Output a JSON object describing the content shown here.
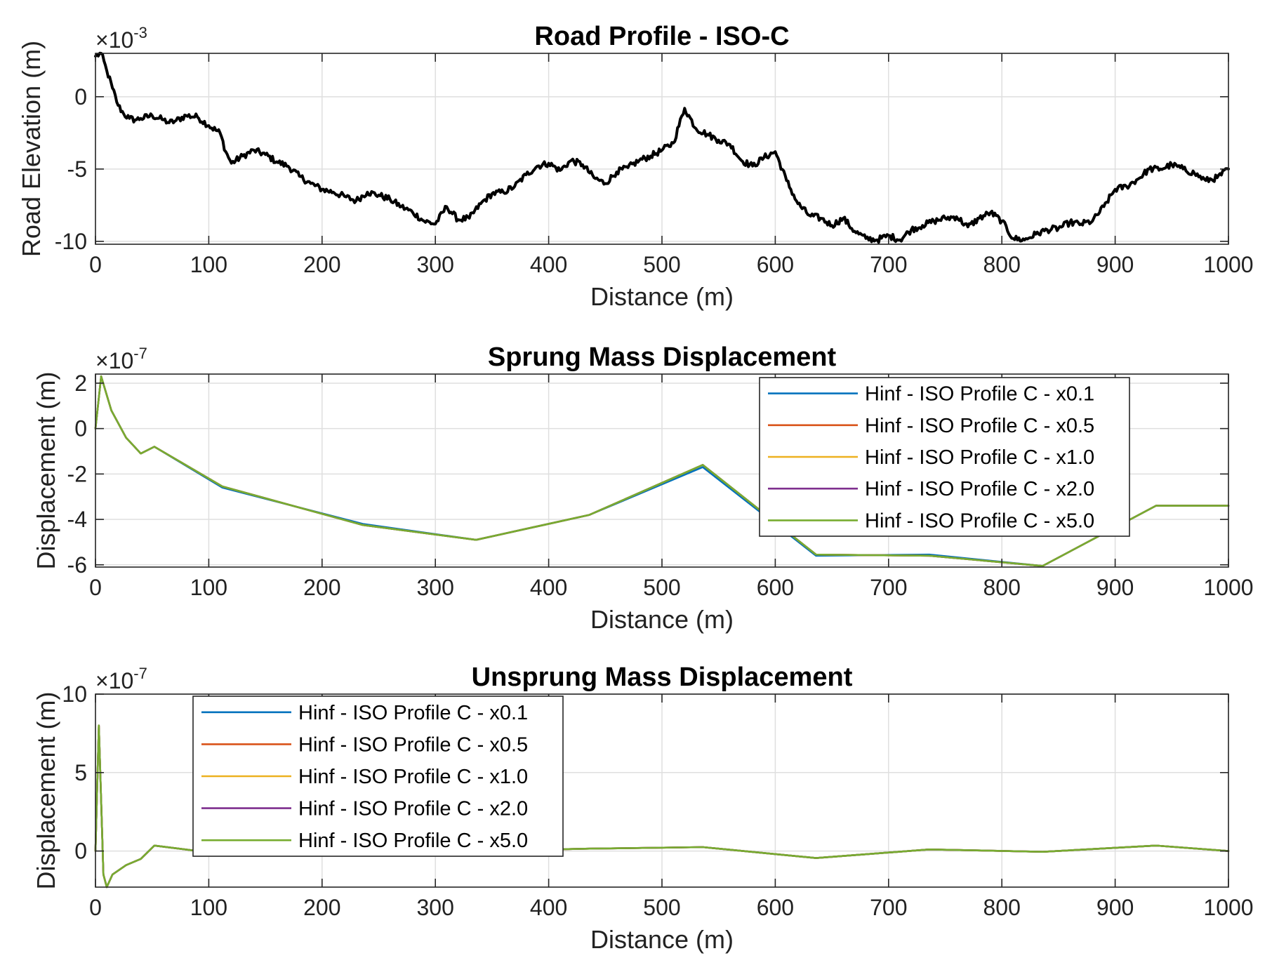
{
  "chart_data": [
    {
      "type": "line",
      "title": "Road Profile - ISO-C",
      "xlabel": "Distance (m)",
      "ylabel": "Road Elevation (m)",
      "y_exponent": "×10",
      "y_exponent_power": "-3",
      "xlim": [
        0,
        1000
      ],
      "ylim": [
        -10.2,
        3.0
      ],
      "xticks": [
        0,
        100,
        200,
        300,
        400,
        500,
        600,
        700,
        800,
        900,
        1000
      ],
      "yticks": [
        -10,
        -5,
        0
      ],
      "grid": true,
      "legend": null,
      "rough": true,
      "series": [
        {
          "color": "#000000",
          "x": [
            0,
            5,
            10,
            15,
            20,
            25,
            30,
            35,
            40,
            50,
            60,
            65,
            70,
            80,
            90,
            100,
            110,
            115,
            120,
            130,
            140,
            150,
            160,
            170,
            180,
            190,
            200,
            210,
            220,
            230,
            240,
            250,
            260,
            270,
            280,
            290,
            300,
            310,
            320,
            330,
            340,
            350,
            360,
            370,
            380,
            390,
            400,
            410,
            420,
            430,
            440,
            450,
            460,
            470,
            480,
            490,
            500,
            510,
            520,
            530,
            540,
            550,
            560,
            570,
            580,
            590,
            600,
            610,
            620,
            630,
            640,
            650,
            660,
            670,
            680,
            690,
            700,
            710,
            720,
            730,
            740,
            750,
            760,
            770,
            780,
            790,
            800,
            810,
            820,
            830,
            840,
            850,
            860,
            870,
            880,
            890,
            900,
            910,
            920,
            930,
            940,
            950,
            960,
            970,
            980,
            990,
            1000
          ],
          "y": [
            2.8,
            3.0,
            1.8,
            0.6,
            -0.6,
            -1.2,
            -1.5,
            -1.6,
            -1.5,
            -1.3,
            -1.6,
            -1.8,
            -1.7,
            -1.3,
            -1.4,
            -2.0,
            -2.5,
            -3.8,
            -4.6,
            -4.1,
            -3.7,
            -4.0,
            -4.5,
            -4.8,
            -5.5,
            -6.0,
            -6.4,
            -6.6,
            -6.9,
            -7.2,
            -6.6,
            -6.8,
            -7.1,
            -7.6,
            -8.0,
            -8.6,
            -8.8,
            -7.6,
            -8.5,
            -8.4,
            -7.4,
            -6.7,
            -6.6,
            -6.2,
            -5.4,
            -4.8,
            -4.6,
            -5.1,
            -4.4,
            -4.7,
            -5.6,
            -6.0,
            -5.2,
            -4.9,
            -4.4,
            -4.1,
            -3.7,
            -3.2,
            -0.8,
            -2.2,
            -2.6,
            -3.0,
            -3.3,
            -4.4,
            -4.8,
            -4.2,
            -3.8,
            -5.8,
            -7.4,
            -8.2,
            -8.4,
            -8.9,
            -8.4,
            -9.3,
            -9.8,
            -9.9,
            -9.6,
            -9.9,
            -9.2,
            -8.9,
            -8.6,
            -8.4,
            -8.3,
            -9.0,
            -8.4,
            -8.0,
            -8.6,
            -9.8,
            -9.9,
            -9.5,
            -9.2,
            -9.1,
            -8.7,
            -8.8,
            -8.6,
            -7.6,
            -6.4,
            -6.2,
            -5.7,
            -5.0,
            -5.0,
            -4.7,
            -5.0,
            -5.3,
            -5.8,
            -5.6,
            -5.0
          ]
        }
      ]
    },
    {
      "type": "line",
      "title": "Sprung Mass Displacement",
      "xlabel": "Distance (m)",
      "ylabel": "Displacement (m)",
      "y_exponent": "×10",
      "y_exponent_power": "-7",
      "xlim": [
        0,
        1000
      ],
      "ylim": [
        -6.1,
        2.4
      ],
      "xticks": [
        0,
        100,
        200,
        300,
        400,
        500,
        600,
        700,
        800,
        900,
        1000
      ],
      "yticks": [
        -6,
        -4,
        -2,
        0,
        2
      ],
      "grid": true,
      "legend": "top-right",
      "series": [
        {
          "name": "Hinf - ISO Profile C - x0.1",
          "color": "#0072BD",
          "x": [
            0,
            5,
            14,
            27,
            40,
            52,
            112,
            236,
            336,
            436,
            536,
            636,
            736,
            836,
            936,
            1000
          ],
          "y": [
            0,
            2.3,
            0.8,
            -0.4,
            -1.1,
            -0.8,
            -2.6,
            -4.2,
            -4.9,
            -3.8,
            -1.7,
            -5.6,
            -5.55,
            -6.05,
            -3.4,
            -3.4
          ]
        },
        {
          "name": "Hinf - ISO Profile C - x0.5",
          "color": "#D95319",
          "x": [
            0,
            5,
            14,
            27,
            40,
            52,
            112,
            236,
            336,
            436,
            536,
            636,
            736,
            836,
            936,
            1000
          ],
          "y": [
            0,
            2.3,
            0.8,
            -0.4,
            -1.1,
            -0.8,
            -2.55,
            -4.25,
            -4.9,
            -3.8,
            -1.6,
            -5.55,
            -5.6,
            -6.05,
            -3.4,
            -3.4
          ]
        },
        {
          "name": "Hinf - ISO Profile C - x1.0",
          "color": "#EDB120",
          "x": [
            0,
            5,
            14,
            27,
            40,
            52,
            112,
            236,
            336,
            436,
            536,
            636,
            736,
            836,
            936,
            1000
          ],
          "y": [
            0,
            2.3,
            0.8,
            -0.4,
            -1.1,
            -0.8,
            -2.55,
            -4.25,
            -4.9,
            -3.8,
            -1.6,
            -5.55,
            -5.6,
            -6.05,
            -3.4,
            -3.4
          ]
        },
        {
          "name": "Hinf - ISO Profile C - x2.0",
          "color": "#7E2F8E",
          "x": [
            0,
            5,
            14,
            27,
            40,
            52,
            112,
            236,
            336,
            436,
            536,
            636,
            736,
            836,
            936,
            1000
          ],
          "y": [
            0,
            2.3,
            0.8,
            -0.4,
            -1.1,
            -0.8,
            -2.55,
            -4.25,
            -4.9,
            -3.8,
            -1.6,
            -5.55,
            -5.6,
            -6.05,
            -3.4,
            -3.4
          ]
        },
        {
          "name": "Hinf - ISO Profile C - x5.0",
          "color": "#77AC30",
          "x": [
            0,
            5,
            14,
            27,
            40,
            52,
            112,
            236,
            336,
            436,
            536,
            636,
            736,
            836,
            936,
            1000
          ],
          "y": [
            0,
            2.3,
            0.8,
            -0.4,
            -1.1,
            -0.8,
            -2.55,
            -4.25,
            -4.9,
            -3.8,
            -1.6,
            -5.55,
            -5.6,
            -6.05,
            -3.4,
            -3.4
          ]
        }
      ]
    },
    {
      "type": "line",
      "title": "Unsprung Mass Displacement",
      "xlabel": "Distance (m)",
      "ylabel": "Displacement (m)",
      "y_exponent": "×10",
      "y_exponent_power": "-7",
      "xlim": [
        0,
        1000
      ],
      "ylim": [
        -2.3,
        10
      ],
      "xticks": [
        0,
        100,
        200,
        300,
        400,
        500,
        600,
        700,
        800,
        900,
        1000
      ],
      "yticks": [
        0,
        5,
        10
      ],
      "grid": true,
      "legend": "top-left",
      "series": [
        {
          "name": "Hinf - ISO Profile C - x0.1",
          "color": "#0072BD",
          "x": [
            0,
            3,
            7,
            10,
            15,
            27,
            40,
            52,
            112,
            236,
            336,
            436,
            536,
            636,
            736,
            836,
            936,
            1000
          ],
          "y": [
            0,
            8.0,
            -1.5,
            -2.3,
            -1.5,
            -0.9,
            -0.5,
            0.35,
            -0.2,
            -0.1,
            0.0,
            0.15,
            0.25,
            -0.45,
            0.1,
            -0.05,
            0.35,
            0.0
          ]
        },
        {
          "name": "Hinf - ISO Profile C - x0.5",
          "color": "#D95319",
          "x": [
            0,
            3,
            7,
            10,
            15,
            27,
            40,
            52,
            112,
            236,
            336,
            436,
            536,
            636,
            736,
            836,
            936,
            1000
          ],
          "y": [
            0,
            8.0,
            -1.5,
            -2.3,
            -1.5,
            -0.9,
            -0.5,
            0.35,
            -0.2,
            -0.1,
            0.0,
            0.15,
            0.25,
            -0.45,
            0.1,
            -0.05,
            0.35,
            0.0
          ]
        },
        {
          "name": "Hinf - ISO Profile C - x1.0",
          "color": "#EDB120",
          "x": [
            0,
            3,
            7,
            10,
            15,
            27,
            40,
            52,
            112,
            236,
            336,
            436,
            536,
            636,
            736,
            836,
            936,
            1000
          ],
          "y": [
            0,
            8.0,
            -1.5,
            -2.3,
            -1.5,
            -0.9,
            -0.5,
            0.35,
            -0.2,
            -0.1,
            0.0,
            0.15,
            0.25,
            -0.45,
            0.1,
            -0.05,
            0.35,
            0.0
          ]
        },
        {
          "name": "Hinf - ISO Profile C - x2.0",
          "color": "#7E2F8E",
          "x": [
            0,
            3,
            7,
            10,
            15,
            27,
            40,
            52,
            112,
            236,
            336,
            436,
            536,
            636,
            736,
            836,
            936,
            1000
          ],
          "y": [
            0,
            8.0,
            -1.5,
            -2.3,
            -1.5,
            -0.9,
            -0.5,
            0.35,
            -0.2,
            -0.1,
            0.0,
            0.15,
            0.25,
            -0.45,
            0.1,
            -0.05,
            0.35,
            0.0
          ]
        },
        {
          "name": "Hinf - ISO Profile C - x5.0",
          "color": "#77AC30",
          "x": [
            0,
            3,
            7,
            10,
            15,
            27,
            40,
            52,
            112,
            236,
            336,
            436,
            536,
            636,
            736,
            836,
            936,
            1000
          ],
          "y": [
            0,
            8.0,
            -1.5,
            -2.3,
            -1.5,
            -0.9,
            -0.5,
            0.35,
            -0.2,
            -0.1,
            0.0,
            0.15,
            0.25,
            -0.45,
            0.1,
            -0.05,
            0.35,
            0.0
          ]
        }
      ]
    }
  ]
}
